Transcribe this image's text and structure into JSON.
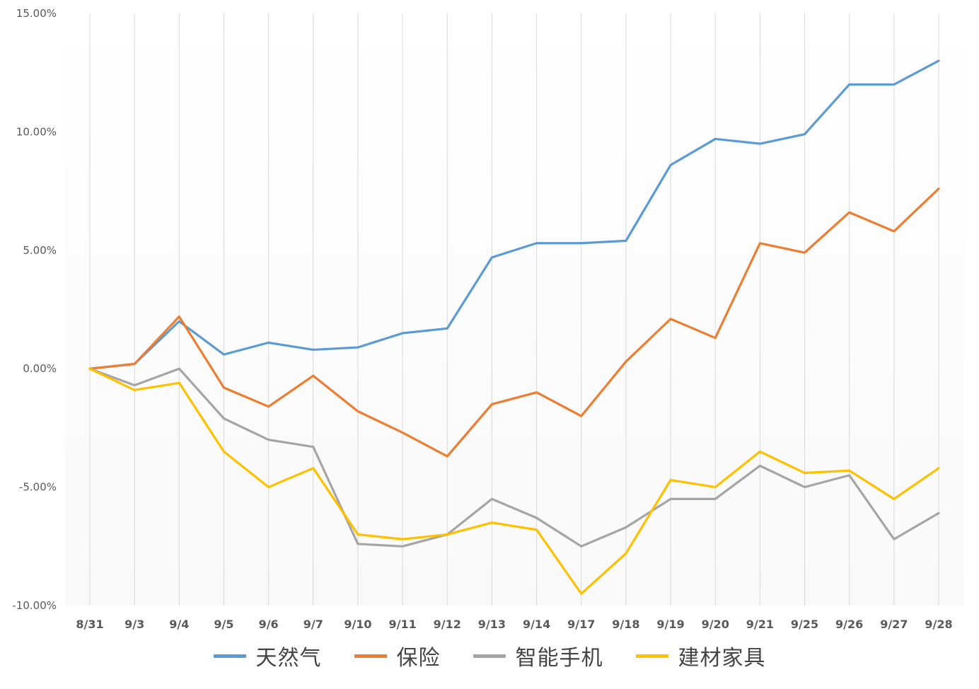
{
  "chart_data": {
    "type": "line",
    "x": [
      "8/31",
      "9/3",
      "9/4",
      "9/5",
      "9/6",
      "9/7",
      "9/10",
      "9/11",
      "9/12",
      "9/13",
      "9/14",
      "9/17",
      "9/18",
      "9/19",
      "9/20",
      "9/21",
      "9/25",
      "9/26",
      "9/27",
      "9/28"
    ],
    "series": [
      {
        "name": "天然气",
        "color": "#5B9BD5",
        "values": [
          0.0,
          0.2,
          2.0,
          0.6,
          1.1,
          0.8,
          0.9,
          1.5,
          1.7,
          4.7,
          5.3,
          5.3,
          5.4,
          8.6,
          9.7,
          9.5,
          9.9,
          12.0,
          12.0,
          13.0
        ]
      },
      {
        "name": "保险",
        "color": "#ED7D31",
        "values": [
          0.0,
          0.2,
          2.2,
          -0.8,
          -1.6,
          -0.3,
          -1.8,
          -2.7,
          -3.7,
          -1.5,
          -1.0,
          -2.0,
          0.3,
          2.1,
          1.3,
          5.3,
          4.9,
          6.6,
          5.8,
          7.6
        ]
      },
      {
        "name": "智能手机",
        "color": "#A5A5A5",
        "values": [
          0.0,
          -0.7,
          0.0,
          -2.1,
          -3.0,
          -3.3,
          -7.4,
          -7.5,
          -7.0,
          -5.5,
          -6.3,
          -7.5,
          -6.7,
          -5.5,
          -5.5,
          -4.1,
          -5.0,
          -4.5,
          -7.2,
          -6.1
        ]
      },
      {
        "name": "建材家具",
        "color": "#FFC000",
        "values": [
          0.0,
          -0.9,
          -0.6,
          -3.5,
          -5.0,
          -4.2,
          -7.0,
          -7.2,
          -7.0,
          -6.5,
          -6.8,
          -9.5,
          -7.8,
          -4.7,
          -5.0,
          -3.5,
          -4.4,
          -4.3,
          -5.5,
          -4.2
        ]
      }
    ],
    "title": "",
    "xlabel": "",
    "ylabel": "",
    "ylim": [
      -10,
      15
    ],
    "ytick_step": 5,
    "ytick_labels": [
      "15.00%",
      "10.00%",
      "5.00%",
      "0.00%",
      "-5.00%",
      "-10.00%"
    ],
    "grid": "vertical",
    "legend_position": "bottom",
    "colors": {
      "gridline": "#d9d9d9",
      "axis_text": "#595959",
      "plot_bg_top": "#ffffff",
      "plot_bg_bottom": "#f4f4f4"
    }
  }
}
